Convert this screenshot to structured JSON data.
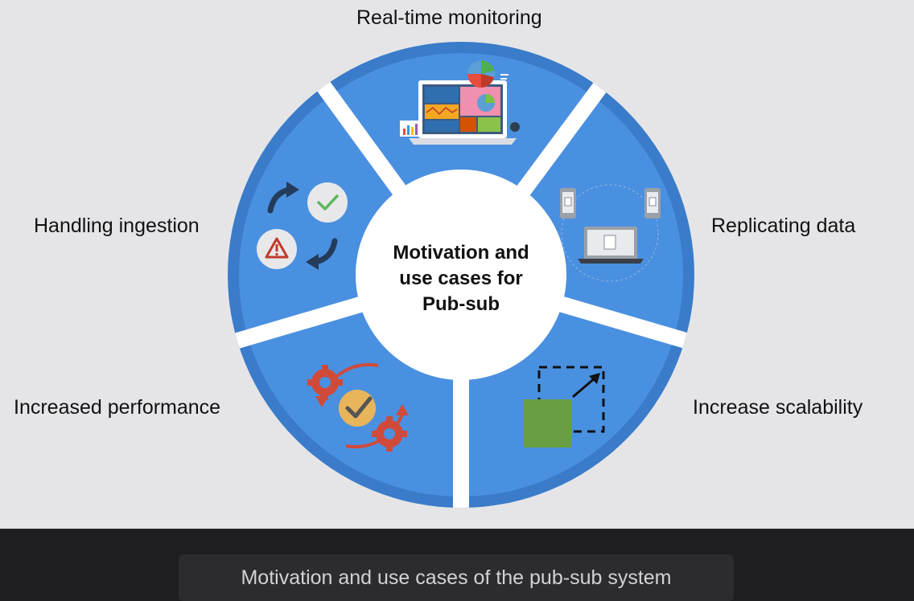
{
  "diagram": {
    "center_title_lines": [
      "Motivation and",
      "use cases for",
      "Pub-sub"
    ],
    "segments": [
      {
        "label": "Real-time monitoring",
        "icon": "dashboard-laptop-icon"
      },
      {
        "label": "Replicating data",
        "icon": "devices-sync-icon"
      },
      {
        "label": "Increase scalability",
        "icon": "scale-up-icon"
      },
      {
        "label": "Increased performance",
        "icon": "gears-check-icon"
      },
      {
        "label": "Handling ingestion",
        "icon": "check-warning-cycle-icon"
      }
    ],
    "colors": {
      "segment": "#4a90e0",
      "segment_edge": "#3a7cc9",
      "center": "#ffffff",
      "background": "#e5e5e8"
    }
  },
  "caption": "Motivation and use cases of the pub-sub system"
}
